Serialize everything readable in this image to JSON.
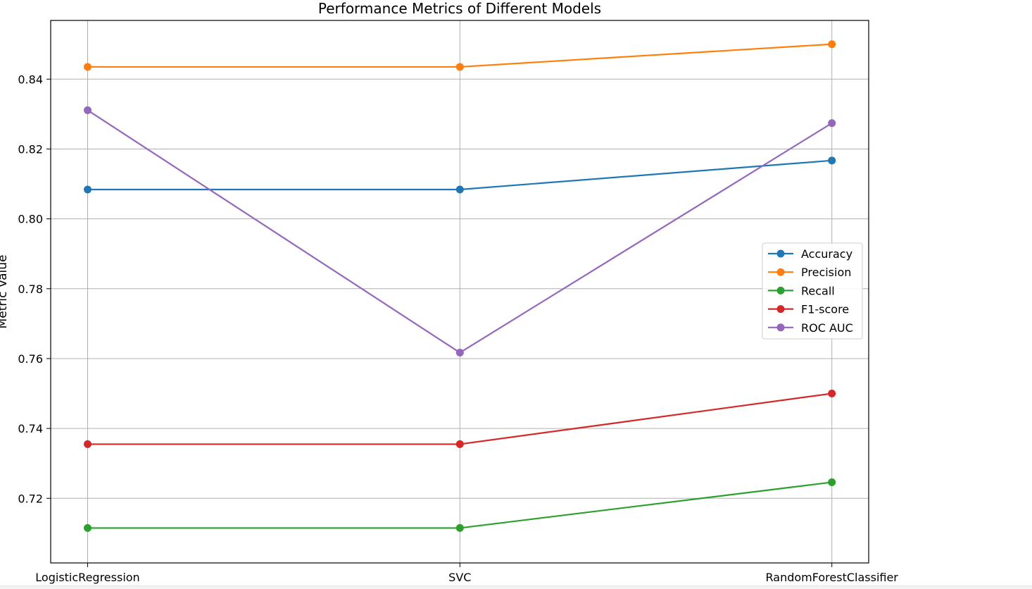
{
  "chart_data": {
    "type": "line",
    "title": "Performance Metrics of Different Models",
    "xlabel": "",
    "ylabel": "Metric Value",
    "categories": [
      "LogisticRegression",
      "SVC",
      "RandomForestClassifier"
    ],
    "ylim": [
      0.7015,
      0.8568
    ],
    "yticks": [
      0.72,
      0.74,
      0.76,
      0.78,
      0.8,
      0.82,
      0.84
    ],
    "ytick_labels": [
      "0.72",
      "0.74",
      "0.76",
      "0.78",
      "0.80",
      "0.82",
      "0.84"
    ],
    "grid": true,
    "legend_position": "center-right",
    "marker": "circle",
    "series": [
      {
        "name": "Accuracy",
        "color": "#1f77b4",
        "values": [
          0.8084,
          0.8084,
          0.8167
        ]
      },
      {
        "name": "Precision",
        "color": "#ff7f0e",
        "values": [
          0.8435,
          0.8435,
          0.85
        ]
      },
      {
        "name": "Recall",
        "color": "#2ca02c",
        "values": [
          0.7115,
          0.7115,
          0.7246
        ]
      },
      {
        "name": "F1-score",
        "color": "#d62728",
        "values": [
          0.7355,
          0.7355,
          0.75
        ]
      },
      {
        "name": "ROC AUC",
        "color": "#9467bd",
        "values": [
          0.8311,
          0.7617,
          0.8274
        ]
      }
    ]
  }
}
